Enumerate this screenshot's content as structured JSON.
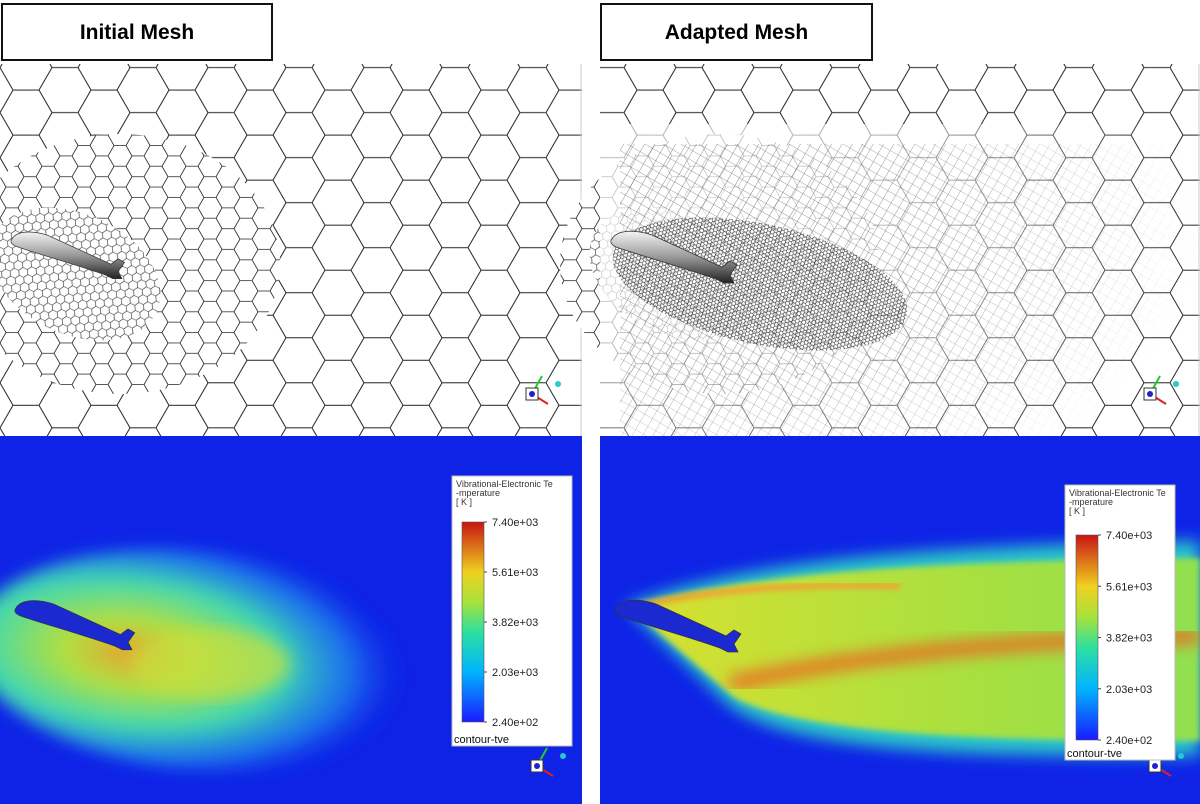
{
  "panels": [
    {
      "title": "Initial Mesh",
      "legend": {
        "title": [
          "Vibrational-Electronic Te",
          "-mperature",
          "[ K ]"
        ],
        "ticks": [
          "7.40e+03",
          "5.61e+03",
          "3.82e+03",
          "2.03e+03",
          "2.40e+02"
        ],
        "footer": "contour-tve"
      }
    },
    {
      "title": "Adapted Mesh",
      "legend": {
        "title": [
          "Vibrational-Electronic Te",
          "-mperature",
          "[ K ]"
        ],
        "ticks": [
          "7.40e+03",
          "5.61e+03",
          "3.82e+03",
          "2.03e+03",
          "2.40e+02"
        ],
        "footer": "contour-tve"
      }
    }
  ]
}
